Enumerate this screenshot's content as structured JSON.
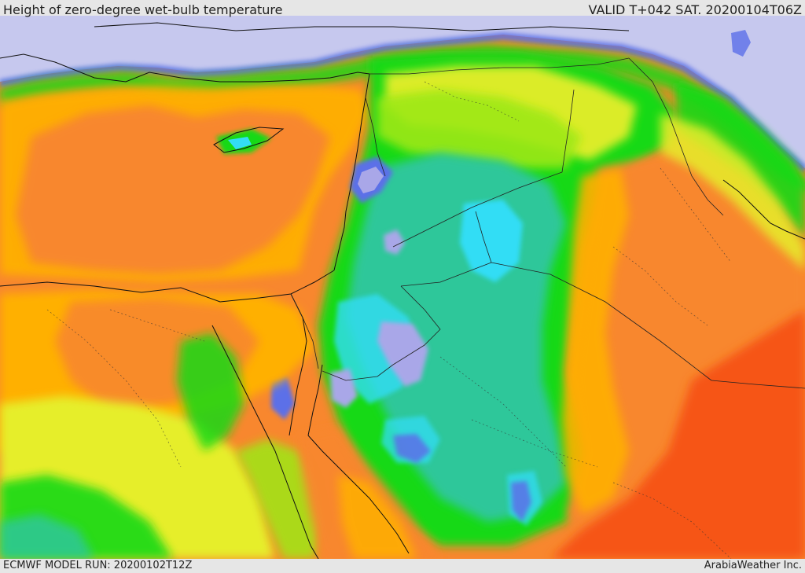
{
  "header": {
    "title": "Height of zero-degree wet-bulb temperature",
    "valid": "VALID T+042 SAT. 20200104T06Z"
  },
  "footer": {
    "model_run": "ECMWF MODEL RUN: 20200102T12Z",
    "credit": "ArabiaWeather Inc."
  },
  "palette": {
    "very_low": "#c6c8ee",
    "low_blue": "#5b6fe8",
    "violet": "#a9a7e8",
    "cyan": "#33ddf5",
    "teal": "#2ec79a",
    "green": "#19d919",
    "lime": "#9ee817",
    "yellow": "#e6ee2a",
    "orange_light": "#ffb000",
    "orange": "#f8872e",
    "red_orange": "#f65516"
  }
}
